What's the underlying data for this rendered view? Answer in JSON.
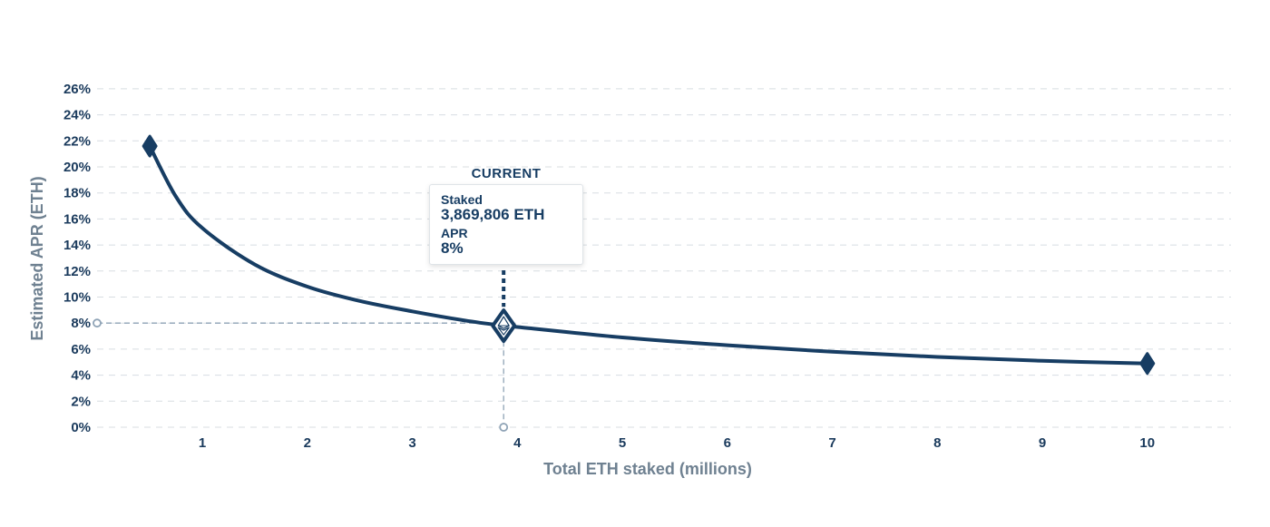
{
  "chart_data": {
    "type": "line",
    "title": "",
    "xlabel": "Total ETH staked (millions)",
    "ylabel": "Estimated APR (ETH)",
    "xlim": [
      0,
      10.8
    ],
    "ylim": [
      0,
      26
    ],
    "x_ticks": [
      1,
      2,
      3,
      4,
      5,
      6,
      7,
      8,
      9,
      10
    ],
    "x_tick_labels": [
      "1",
      "2",
      "3",
      "4",
      "5",
      "6",
      "7",
      "8",
      "9",
      "10"
    ],
    "y_ticks": [
      0,
      2,
      4,
      6,
      8,
      10,
      12,
      14,
      16,
      18,
      20,
      22,
      24,
      26
    ],
    "y_tick_labels": [
      "0%",
      "2%",
      "4%",
      "6%",
      "8%",
      "10%",
      "12%",
      "14%",
      "16%",
      "18%",
      "20%",
      "22%",
      "24%",
      "26%"
    ],
    "grid": true,
    "series": [
      {
        "x": [
          0.5,
          0.75,
          1,
          1.5,
          2,
          2.5,
          3,
          3.5,
          3.87,
          4,
          5,
          6,
          7,
          8,
          9,
          10
        ],
        "y": [
          21.6,
          17.7,
          15.3,
          12.5,
          10.8,
          9.7,
          8.9,
          8.2,
          7.8,
          7.7,
          6.9,
          6.3,
          5.8,
          5.4,
          5.1,
          4.9
        ]
      }
    ],
    "markers": [
      {
        "x": 0.5,
        "y": 21.6
      },
      {
        "x": 3.87,
        "y": 7.8
      },
      {
        "x": 10,
        "y": 4.9
      }
    ],
    "current": {
      "label": "CURRENT",
      "x": 3.869806,
      "y": 8,
      "staked_label": "Staked",
      "staked_value": "3,869,806 ETH",
      "apr_label": "APR",
      "apr_value": "8%"
    },
    "colors": {
      "line": "#173d63",
      "grid": "#d8dde2",
      "guide": "#8fa3b6",
      "tick_text": "#1a3a5c",
      "axis_title": "#6f8191"
    }
  }
}
